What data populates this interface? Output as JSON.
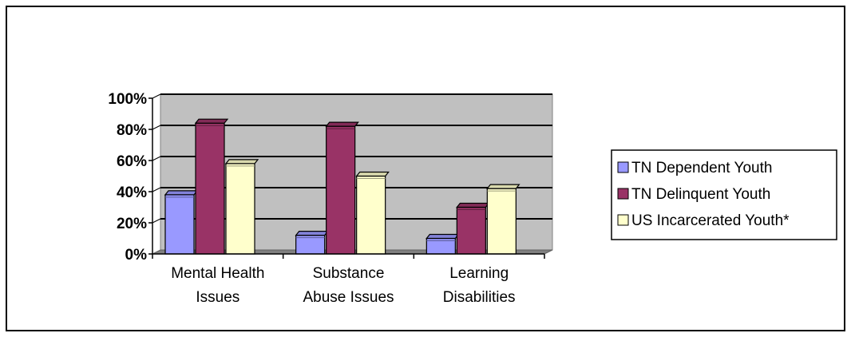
{
  "chart_data": {
    "type": "bar",
    "style": "3d-clustered-column",
    "categories": [
      [
        "Mental Health",
        "Issues"
      ],
      [
        "Substance",
        "Abuse Issues"
      ],
      [
        "Learning",
        "Disabilities"
      ]
    ],
    "series": [
      {
        "name": "TN Dependent Youth",
        "values": [
          38,
          12,
          10
        ],
        "color": "#9999ff"
      },
      {
        "name": "TN Delinquent Youth",
        "values": [
          84,
          82,
          30
        ],
        "color": "#993366"
      },
      {
        "name": "US Incarcerated Youth*",
        "values": [
          58,
          50,
          42
        ],
        "color": "#ffffcc"
      }
    ],
    "y_ticks": [
      "0%",
      "20%",
      "40%",
      "60%",
      "80%",
      "100%"
    ],
    "ylim": [
      0,
      100
    ],
    "grid": true,
    "plot_background": "#c0c0c0",
    "legend_position": "right"
  }
}
